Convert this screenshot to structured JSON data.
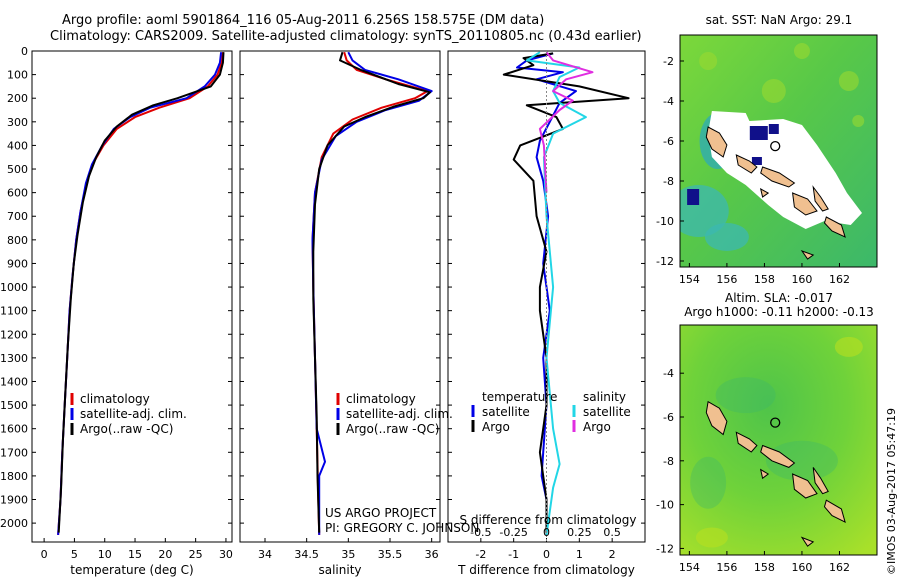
{
  "header": {
    "line1": "Argo profile: aoml 5901864_116 05-Aug-2011 6.256S 158.575E (DM data)",
    "line2": "Climatology: CARS2009. Satellite-adjusted climatology: synTS_20110805.nc (0.43d earlier)"
  },
  "colors": {
    "climatology": "#e00000",
    "satellite": "#0000e6",
    "argo": "#000000",
    "sal_sat": "#22d6e6",
    "sal_argo": "#e02ee0"
  },
  "chart_data": [
    {
      "type": "line",
      "id": "temperature",
      "xlabel": "temperature (deg C)",
      "xlim": [
        -2,
        31
      ],
      "xticks": [
        0,
        5,
        10,
        15,
        20,
        25,
        30
      ],
      "ylim": [
        2080,
        0
      ],
      "yticks": [
        0,
        100,
        200,
        300,
        400,
        500,
        600,
        700,
        800,
        900,
        1000,
        1100,
        1200,
        1300,
        1400,
        1500,
        1600,
        1700,
        1800,
        1900,
        2000
      ],
      "series": [
        {
          "name": "climatology",
          "color_key": "climatology",
          "points": [
            [
              29.5,
              5
            ],
            [
              29.3,
              50
            ],
            [
              28.6,
              100
            ],
            [
              27,
              150
            ],
            [
              24,
              200
            ],
            [
              19,
              240
            ],
            [
              15,
              280
            ],
            [
              12,
              330
            ],
            [
              9.8,
              400
            ],
            [
              8,
              480
            ],
            [
              7,
              560
            ],
            [
              6,
              680
            ],
            [
              5.3,
              800
            ],
            [
              4.7,
              950
            ],
            [
              4.2,
              1100
            ],
            [
              3.8,
              1300
            ],
            [
              3.4,
              1500
            ],
            [
              3,
              1700
            ],
            [
              2.7,
              1900
            ],
            [
              2.3,
              2050
            ]
          ]
        },
        {
          "name": "satellite-adj. clim.",
          "color_key": "satellite",
          "points": [
            [
              29.2,
              5
            ],
            [
              29,
              50
            ],
            [
              28.2,
              100
            ],
            [
              26.5,
              150
            ],
            [
              23.5,
              200
            ],
            [
              17.5,
              240
            ],
            [
              14.2,
              280
            ],
            [
              11.5,
              330
            ],
            [
              9.6,
              400
            ],
            [
              7.9,
              480
            ],
            [
              6.9,
              560
            ],
            [
              6,
              680
            ],
            [
              5.3,
              800
            ],
            [
              4.7,
              950
            ],
            [
              4.2,
              1100
            ],
            [
              3.8,
              1300
            ],
            [
              3.4,
              1500
            ],
            [
              3,
              1700
            ],
            [
              2.7,
              1900
            ],
            [
              2.3,
              2050
            ]
          ]
        },
        {
          "name": "Argo(..raw -QC)",
          "color_key": "argo",
          "points": [
            [
              29.6,
              5
            ],
            [
              29.5,
              50
            ],
            [
              29,
              100
            ],
            [
              27.5,
              150
            ],
            [
              22,
              200
            ],
            [
              18,
              230
            ],
            [
              14.5,
              270
            ],
            [
              12,
              320
            ],
            [
              10,
              380
            ],
            [
              8.6,
              450
            ],
            [
              7.4,
              530
            ],
            [
              6.4,
              640
            ],
            [
              5.5,
              780
            ],
            [
              4.9,
              900
            ],
            [
              4.4,
              1050
            ],
            [
              3.9,
              1250
            ],
            [
              3.5,
              1450
            ],
            [
              3.1,
              1650
            ],
            [
              2.8,
              1850
            ],
            [
              2.4,
              2040
            ]
          ]
        }
      ],
      "legend": [
        "climatology",
        "satellite-adj. clim.",
        "Argo(..raw -QC)"
      ],
      "legend_position": "lower-left"
    },
    {
      "type": "line",
      "id": "salinity",
      "xlabel": "salinity",
      "xlim": [
        33.7,
        36.1
      ],
      "xticks": [
        34,
        34.5,
        35,
        35.5,
        36
      ],
      "xticklabels": [
        "34",
        "34.5",
        "35",
        "35.5",
        "36"
      ],
      "ylim": [
        2080,
        0
      ],
      "series": [
        {
          "name": "climatology",
          "color_key": "climatology",
          "points": [
            [
              34.95,
              5
            ],
            [
              34.98,
              40
            ],
            [
              35.1,
              80
            ],
            [
              35.45,
              120
            ],
            [
              35.95,
              170
            ],
            [
              35.8,
              200
            ],
            [
              35.4,
              240
            ],
            [
              35.05,
              290
            ],
            [
              34.82,
              350
            ],
            [
              34.68,
              450
            ],
            [
              34.6,
              600
            ],
            [
              34.57,
              800
            ],
            [
              34.58,
              1000
            ],
            [
              34.6,
              1300
            ],
            [
              34.62,
              1600
            ],
            [
              34.64,
              1900
            ],
            [
              34.65,
              2050
            ]
          ]
        },
        {
          "name": "satellite-adj. clim.",
          "color_key": "satellite",
          "points": [
            [
              35.0,
              5
            ],
            [
              35.05,
              40
            ],
            [
              35.2,
              80
            ],
            [
              35.6,
              120
            ],
            [
              36.0,
              170
            ],
            [
              35.85,
              210
            ],
            [
              35.45,
              250
            ],
            [
              35.1,
              300
            ],
            [
              34.85,
              360
            ],
            [
              34.68,
              460
            ],
            [
              34.6,
              600
            ],
            [
              34.57,
              800
            ],
            [
              34.58,
              1000
            ],
            [
              34.6,
              1300
            ],
            [
              34.62,
              1600
            ],
            [
              34.72,
              1740
            ],
            [
              34.65,
              1800
            ],
            [
              34.65,
              2050
            ]
          ]
        },
        {
          "name": "Argo(..raw -QC)",
          "color_key": "argo",
          "points": [
            [
              34.93,
              5
            ],
            [
              34.9,
              40
            ],
            [
              35.15,
              80
            ],
            [
              35.6,
              140
            ],
            [
              35.98,
              175
            ],
            [
              35.9,
              200
            ],
            [
              35.55,
              235
            ],
            [
              35.2,
              280
            ],
            [
              34.95,
              320
            ],
            [
              34.75,
              400
            ],
            [
              34.65,
              500
            ],
            [
              34.6,
              650
            ],
            [
              34.58,
              850
            ],
            [
              34.58,
              1050
            ],
            [
              34.6,
              1300
            ],
            [
              34.62,
              1550
            ],
            [
              34.63,
              1800
            ],
            [
              34.65,
              2040
            ]
          ]
        }
      ],
      "legend": [
        "climatology",
        "satellite-adj. clim.",
        "Argo(..raw -QC)"
      ],
      "legend_position": "lower-left",
      "annotations": [
        "US ARGO PROJECT",
        "PI: GREGORY C. JOHNSON"
      ]
    },
    {
      "type": "line",
      "id": "difference",
      "xlabel": "T difference from climatology",
      "xlabel_top": "S difference from climatology",
      "xlim": [
        -3,
        3
      ],
      "xticks": [
        -2,
        -1,
        0,
        1,
        2
      ],
      "xticklabels": [
        "-2",
        "-1",
        "0",
        "1",
        "2"
      ],
      "sticks": [
        -0.5,
        -0.25,
        0,
        0.25,
        0.5
      ],
      "sticklabels": [
        "-0.5",
        "-0.25",
        "0",
        "0.25",
        "0.5"
      ],
      "s_scale": 4,
      "ylim": [
        2080,
        0
      ],
      "series": [
        {
          "name": "T satellite",
          "color_key": "satellite",
          "points": [
            [
              0.2,
              10
            ],
            [
              -0.6,
              40
            ],
            [
              -0.9,
              70
            ],
            [
              0.5,
              90
            ],
            [
              -0.3,
              120
            ],
            [
              0.9,
              170
            ],
            [
              0.4,
              220
            ],
            [
              0.1,
              300
            ],
            [
              -0.2,
              380
            ],
            [
              -0.3,
              450
            ],
            [
              -0.1,
              550
            ],
            [
              0.05,
              700
            ],
            [
              -0.1,
              900
            ],
            [
              0.1,
              1100
            ],
            [
              -0.1,
              1300
            ],
            [
              0,
              1500
            ],
            [
              -0.1,
              1700
            ],
            [
              -0.15,
              1800
            ],
            [
              0,
              1900
            ],
            [
              0,
              2050
            ]
          ]
        },
        {
          "name": "T Argo",
          "color_key": "argo",
          "points": [
            [
              0.2,
              10
            ],
            [
              -0.7,
              30
            ],
            [
              -0.4,
              60
            ],
            [
              -1.3,
              100
            ],
            [
              1.0,
              150
            ],
            [
              2.5,
              200
            ],
            [
              -0.6,
              230
            ],
            [
              0.3,
              280
            ],
            [
              0.5,
              330
            ],
            [
              -0.8,
              400
            ],
            [
              -1.0,
              460
            ],
            [
              -0.4,
              550
            ],
            [
              -0.3,
              700
            ],
            [
              0,
              850
            ],
            [
              -0.2,
              1000
            ],
            [
              -0.2,
              1100
            ],
            [
              0,
              1300
            ],
            [
              0,
              1500
            ],
            [
              -0.2,
              1700
            ],
            [
              -0.1,
              1800
            ],
            [
              0,
              1900
            ],
            [
              0,
              2050
            ]
          ]
        },
        {
          "name": "S satellite",
          "color_key": "sal_sat",
          "points": [
            [
              -0.05,
              5
            ],
            [
              -0.15,
              40
            ],
            [
              0.25,
              70
            ],
            [
              0.1,
              110
            ],
            [
              0.05,
              170
            ],
            [
              0.1,
              220
            ],
            [
              0.3,
              280
            ],
            [
              0.05,
              350
            ],
            [
              -0.02,
              450
            ],
            [
              0,
              700
            ],
            [
              0.05,
              1000
            ],
            [
              0,
              1300
            ],
            [
              0.05,
              1600
            ],
            [
              0.1,
              1750
            ],
            [
              0.05,
              1850
            ],
            [
              0,
              2050
            ]
          ]
        },
        {
          "name": "S Argo",
          "color_key": "sal_argo",
          "points": [
            [
              0,
              5
            ],
            [
              0.05,
              40
            ],
            [
              0.35,
              90
            ],
            [
              0.15,
              120
            ],
            [
              0.05,
              170
            ],
            [
              0.2,
              210
            ],
            [
              0.1,
              250
            ],
            [
              -0.05,
              330
            ],
            [
              -0.02,
              400
            ],
            [
              0,
              600
            ]
          ]
        }
      ],
      "legend": [
        "temperature",
        "satellite",
        "Argo",
        "salinity",
        "satellite",
        "Argo"
      ],
      "legend_position": "lower-center"
    },
    {
      "type": "heatmap",
      "id": "sst-map",
      "title": "sat. SST: NaN Argo: 29.1",
      "xlim": [
        153.5,
        164
      ],
      "ylim": [
        -12.3,
        -0.7
      ],
      "xticks": [
        154,
        156,
        158,
        160,
        162
      ],
      "yticks": [
        -2,
        -4,
        -6,
        -8,
        -10,
        -12
      ],
      "yticklabels": [
        "-2",
        "-4",
        "-6",
        "-8",
        "-10",
        "-12"
      ],
      "marker": {
        "lon": 158.575,
        "lat": -6.256
      }
    },
    {
      "type": "heatmap",
      "id": "sla-map",
      "title": "Altim. SLA: -0.017",
      "subtitle": "Argo h1000: -0.11 h2000: -0.13",
      "xlim": [
        153.5,
        164
      ],
      "ylim": [
        -12.3,
        -1.8
      ],
      "xticks": [
        154,
        156,
        158,
        160,
        162
      ],
      "yticks": [
        -4,
        -6,
        -8,
        -10,
        -12
      ],
      "yticklabels": [
        "-4",
        "-6",
        "-8",
        "-10",
        "-12"
      ],
      "marker": {
        "lon": 158.575,
        "lat": -6.256
      }
    }
  ],
  "side_note": "©IMOS 03-Aug-2017 05:47:19"
}
